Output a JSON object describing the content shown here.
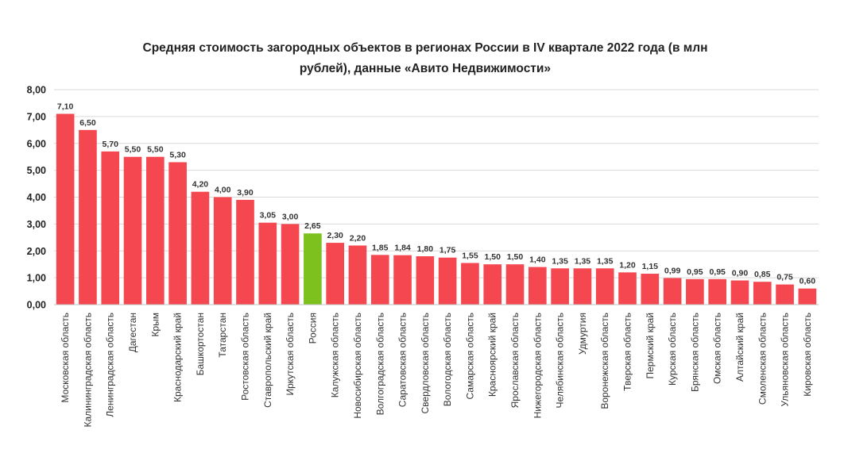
{
  "chart_data": {
    "type": "bar",
    "title_line1": "Средняя стоимость загородных объектов в регионах России в IV квартале 2022 года (в млн",
    "title_line2": "рублей), данные «Авито Недвижимости»",
    "xlabel": "",
    "ylabel": "",
    "ylim": [
      0,
      8
    ],
    "yticks": [
      "0,00",
      "1,00",
      "2,00",
      "3,00",
      "4,00",
      "5,00",
      "6,00",
      "7,00",
      "8,00"
    ],
    "grid": true,
    "legend": "none",
    "colors": {
      "bar": "#f4474f",
      "highlight": "#7dc11f",
      "grid": "#d9d9d9"
    },
    "highlight_category": "Россия",
    "categories": [
      "Московская область",
      "Калининградская область",
      "Ленинградская область",
      "Дагестан",
      "Крым",
      "Краснодарский край",
      "Башкортостан",
      "Татарстан",
      "Ростовская область",
      "Ставропольский край",
      "Иркутская область",
      "Россия",
      "Калужская область",
      "Новосибирская область",
      "Волгоградская область",
      "Саратовская область",
      "Свердловская область",
      "Вологодская область",
      "Самарская область",
      "Красноярский край",
      "Ярославская область",
      "Нижегородская область",
      "Челябинская область",
      "Удмуртия",
      "Воронежская область",
      "Тверская область",
      "Пермский край",
      "Курская область",
      "Брянская область",
      "Омская область",
      "Алтайский край",
      "Смоленская область",
      "Ульяновская область",
      "Кировская область"
    ],
    "values": [
      7.1,
      6.5,
      5.7,
      5.5,
      5.5,
      5.3,
      4.2,
      4.0,
      3.9,
      3.05,
      3.0,
      2.65,
      2.3,
      2.2,
      1.85,
      1.84,
      1.8,
      1.75,
      1.55,
      1.5,
      1.5,
      1.4,
      1.35,
      1.35,
      1.35,
      1.2,
      1.15,
      0.99,
      0.95,
      0.95,
      0.9,
      0.85,
      0.75,
      0.6
    ],
    "value_labels": [
      "7,10",
      "6,50",
      "5,70",
      "5,50",
      "5,50",
      "5,30",
      "4,20",
      "4,00",
      "3,90",
      "3,05",
      "3,00",
      "2,65",
      "2,30",
      "2,20",
      "1,85",
      "1,84",
      "1,80",
      "1,75",
      "1,55",
      "1,50",
      "1,50",
      "1,40",
      "1,35",
      "1,35",
      "1,35",
      "1,20",
      "1,15",
      "0,99",
      "0,95",
      "0,95",
      "0,90",
      "0,85",
      "0,75",
      "0,60"
    ]
  }
}
